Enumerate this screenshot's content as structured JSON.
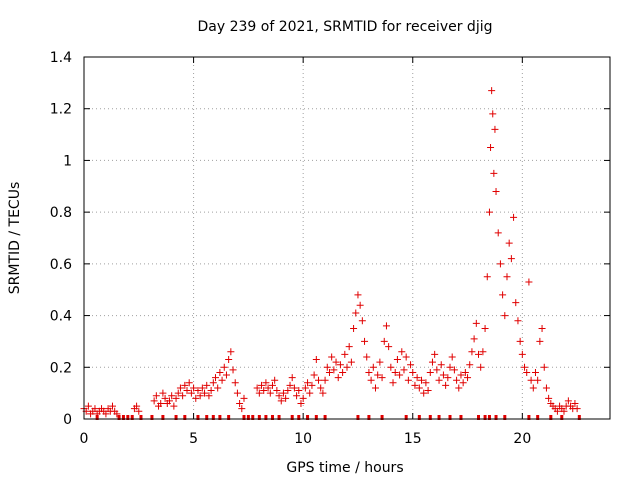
{
  "chart_data": {
    "type": "scatter",
    "title": "Day 239 of 2021, SRMTID for receiver djig",
    "xlabel": "GPS time / hours",
    "ylabel": "SRMTID / TECUs",
    "xlim": [
      0,
      24
    ],
    "ylim": [
      0,
      1.4
    ],
    "xticks": [
      0,
      5,
      10,
      15,
      20
    ],
    "xtick_labels": [
      "0",
      "5",
      "10",
      "15",
      "20"
    ],
    "yticks": [
      0,
      0.2,
      0.4,
      0.6,
      0.8,
      1.0,
      1.2,
      1.4
    ],
    "ytick_labels": [
      "0",
      "0.2",
      "0.4",
      "0.6",
      "0.8",
      "1",
      "1.2",
      "1.4"
    ],
    "grid": true,
    "marker": "+",
    "color": "#e00000",
    "series": [
      {
        "name": "SRMTID",
        "points": [
          [
            0.0,
            0.04
          ],
          [
            0.1,
            0.03
          ],
          [
            0.2,
            0.05
          ],
          [
            0.3,
            0.02
          ],
          [
            0.4,
            0.03
          ],
          [
            0.5,
            0.04
          ],
          [
            0.6,
            0.02
          ],
          [
            0.7,
            0.03
          ],
          [
            0.8,
            0.04
          ],
          [
            0.9,
            0.03
          ],
          [
            1.0,
            0.02
          ],
          [
            1.1,
            0.04
          ],
          [
            1.2,
            0.03
          ],
          [
            1.3,
            0.05
          ],
          [
            1.4,
            0.03
          ],
          [
            1.5,
            0.02
          ],
          [
            2.3,
            0.04
          ],
          [
            2.4,
            0.05
          ],
          [
            2.5,
            0.03
          ],
          [
            3.2,
            0.07
          ],
          [
            3.3,
            0.09
          ],
          [
            3.4,
            0.05
          ],
          [
            3.5,
            0.06
          ],
          [
            3.6,
            0.1
          ],
          [
            3.7,
            0.08
          ],
          [
            3.8,
            0.06
          ],
          [
            3.9,
            0.07
          ],
          [
            4.0,
            0.09
          ],
          [
            4.1,
            0.05
          ],
          [
            4.2,
            0.08
          ],
          [
            4.3,
            0.1
          ],
          [
            4.4,
            0.12
          ],
          [
            4.5,
            0.09
          ],
          [
            4.6,
            0.13
          ],
          [
            4.7,
            0.11
          ],
          [
            4.8,
            0.14
          ],
          [
            4.9,
            0.1
          ],
          [
            5.0,
            0.12
          ],
          [
            5.1,
            0.08
          ],
          [
            5.2,
            0.11
          ],
          [
            5.3,
            0.09
          ],
          [
            5.4,
            0.12
          ],
          [
            5.5,
            0.1
          ],
          [
            5.6,
            0.13
          ],
          [
            5.7,
            0.09
          ],
          [
            5.8,
            0.11
          ],
          [
            5.9,
            0.14
          ],
          [
            6.0,
            0.16
          ],
          [
            6.1,
            0.12
          ],
          [
            6.2,
            0.18
          ],
          [
            6.3,
            0.15
          ],
          [
            6.4,
            0.2
          ],
          [
            6.5,
            0.17
          ],
          [
            6.6,
            0.23
          ],
          [
            6.7,
            0.26
          ],
          [
            6.8,
            0.19
          ],
          [
            6.9,
            0.14
          ],
          [
            7.0,
            0.1
          ],
          [
            7.1,
            0.06
          ],
          [
            7.2,
            0.04
          ],
          [
            7.3,
            0.08
          ],
          [
            7.9,
            0.12
          ],
          [
            8.0,
            0.1
          ],
          [
            8.1,
            0.13
          ],
          [
            8.2,
            0.11
          ],
          [
            8.3,
            0.14
          ],
          [
            8.4,
            0.12
          ],
          [
            8.5,
            0.1
          ],
          [
            8.6,
            0.13
          ],
          [
            8.7,
            0.15
          ],
          [
            8.8,
            0.11
          ],
          [
            8.9,
            0.09
          ],
          [
            9.0,
            0.07
          ],
          [
            9.1,
            0.1
          ],
          [
            9.2,
            0.08
          ],
          [
            9.3,
            0.11
          ],
          [
            9.4,
            0.13
          ],
          [
            9.5,
            0.16
          ],
          [
            9.6,
            0.12
          ],
          [
            9.7,
            0.09
          ],
          [
            9.8,
            0.11
          ],
          [
            9.9,
            0.06
          ],
          [
            10.0,
            0.08
          ],
          [
            10.1,
            0.12
          ],
          [
            10.2,
            0.14
          ],
          [
            10.3,
            0.1
          ],
          [
            10.4,
            0.13
          ],
          [
            10.5,
            0.17
          ],
          [
            10.6,
            0.23
          ],
          [
            10.7,
            0.15
          ],
          [
            10.8,
            0.12
          ],
          [
            10.9,
            0.1
          ],
          [
            11.0,
            0.15
          ],
          [
            11.1,
            0.2
          ],
          [
            11.2,
            0.18
          ],
          [
            11.3,
            0.24
          ],
          [
            11.4,
            0.19
          ],
          [
            11.5,
            0.22
          ],
          [
            11.6,
            0.16
          ],
          [
            11.7,
            0.21
          ],
          [
            11.8,
            0.18
          ],
          [
            11.9,
            0.25
          ],
          [
            12.0,
            0.2
          ],
          [
            12.1,
            0.28
          ],
          [
            12.2,
            0.22
          ],
          [
            12.3,
            0.35
          ],
          [
            12.4,
            0.41
          ],
          [
            12.5,
            0.48
          ],
          [
            12.6,
            0.44
          ],
          [
            12.7,
            0.38
          ],
          [
            12.8,
            0.3
          ],
          [
            12.9,
            0.24
          ],
          [
            13.0,
            0.18
          ],
          [
            13.1,
            0.15
          ],
          [
            13.2,
            0.2
          ],
          [
            13.3,
            0.12
          ],
          [
            13.4,
            0.17
          ],
          [
            13.5,
            0.22
          ],
          [
            13.6,
            0.16
          ],
          [
            13.7,
            0.3
          ],
          [
            13.8,
            0.36
          ],
          [
            13.9,
            0.28
          ],
          [
            14.0,
            0.2
          ],
          [
            14.1,
            0.14
          ],
          [
            14.2,
            0.18
          ],
          [
            14.3,
            0.23
          ],
          [
            14.4,
            0.17
          ],
          [
            14.5,
            0.26
          ],
          [
            14.6,
            0.19
          ],
          [
            14.7,
            0.24
          ],
          [
            14.8,
            0.15
          ],
          [
            14.9,
            0.21
          ],
          [
            15.0,
            0.18
          ],
          [
            15.1,
            0.13
          ],
          [
            15.2,
            0.16
          ],
          [
            15.3,
            0.12
          ],
          [
            15.4,
            0.15
          ],
          [
            15.5,
            0.1
          ],
          [
            15.6,
            0.14
          ],
          [
            15.7,
            0.11
          ],
          [
            15.8,
            0.18
          ],
          [
            15.9,
            0.22
          ],
          [
            16.0,
            0.25
          ],
          [
            16.1,
            0.19
          ],
          [
            16.2,
            0.15
          ],
          [
            16.3,
            0.21
          ],
          [
            16.4,
            0.17
          ],
          [
            16.5,
            0.13
          ],
          [
            16.6,
            0.16
          ],
          [
            16.7,
            0.2
          ],
          [
            16.8,
            0.24
          ],
          [
            16.9,
            0.19
          ],
          [
            17.0,
            0.15
          ],
          [
            17.1,
            0.12
          ],
          [
            17.2,
            0.17
          ],
          [
            17.3,
            0.14
          ],
          [
            17.4,
            0.18
          ],
          [
            17.5,
            0.16
          ],
          [
            17.6,
            0.21
          ],
          [
            17.7,
            0.26
          ],
          [
            17.8,
            0.31
          ],
          [
            17.9,
            0.37
          ],
          [
            18.0,
            0.25
          ],
          [
            18.1,
            0.2
          ],
          [
            18.2,
            0.26
          ],
          [
            18.3,
            0.35
          ],
          [
            18.4,
            0.55
          ],
          [
            18.5,
            0.8
          ],
          [
            18.55,
            1.05
          ],
          [
            18.6,
            1.27
          ],
          [
            18.65,
            1.18
          ],
          [
            18.7,
            0.95
          ],
          [
            18.75,
            1.12
          ],
          [
            18.8,
            0.88
          ],
          [
            18.9,
            0.72
          ],
          [
            19.0,
            0.6
          ],
          [
            19.1,
            0.48
          ],
          [
            19.2,
            0.4
          ],
          [
            19.3,
            0.55
          ],
          [
            19.4,
            0.68
          ],
          [
            19.5,
            0.62
          ],
          [
            19.6,
            0.78
          ],
          [
            19.7,
            0.45
          ],
          [
            19.8,
            0.38
          ],
          [
            19.9,
            0.3
          ],
          [
            20.0,
            0.25
          ],
          [
            20.1,
            0.2
          ],
          [
            20.2,
            0.18
          ],
          [
            20.3,
            0.53
          ],
          [
            20.4,
            0.15
          ],
          [
            20.5,
            0.12
          ],
          [
            20.6,
            0.18
          ],
          [
            20.7,
            0.15
          ],
          [
            20.8,
            0.3
          ],
          [
            20.9,
            0.35
          ],
          [
            21.0,
            0.2
          ],
          [
            21.1,
            0.12
          ],
          [
            21.2,
            0.08
          ],
          [
            21.3,
            0.06
          ],
          [
            21.4,
            0.05
          ],
          [
            21.5,
            0.04
          ],
          [
            21.6,
            0.03
          ],
          [
            21.7,
            0.05
          ],
          [
            21.8,
            0.04
          ],
          [
            21.9,
            0.03
          ],
          [
            22.0,
            0.05
          ],
          [
            22.1,
            0.07
          ],
          [
            22.2,
            0.05
          ],
          [
            22.3,
            0.04
          ],
          [
            22.4,
            0.06
          ],
          [
            22.5,
            0.04
          ]
        ],
        "zero_points_x": [
          0.6,
          1.6,
          1.8,
          2.0,
          2.2,
          2.6,
          3.1,
          3.6,
          4.2,
          4.6,
          5.2,
          5.6,
          5.9,
          6.2,
          6.6,
          7.3,
          7.5,
          7.7,
          8.0,
          8.3,
          8.6,
          8.9,
          9.5,
          9.8,
          10.2,
          10.6,
          11.0,
          12.5,
          13.0,
          13.6,
          14.7,
          15.3,
          15.8,
          16.2,
          16.7,
          17.2,
          18.0,
          18.3,
          18.5,
          18.8,
          19.2,
          20.3,
          20.7,
          21.3,
          21.8,
          22.6
        ]
      }
    ]
  }
}
